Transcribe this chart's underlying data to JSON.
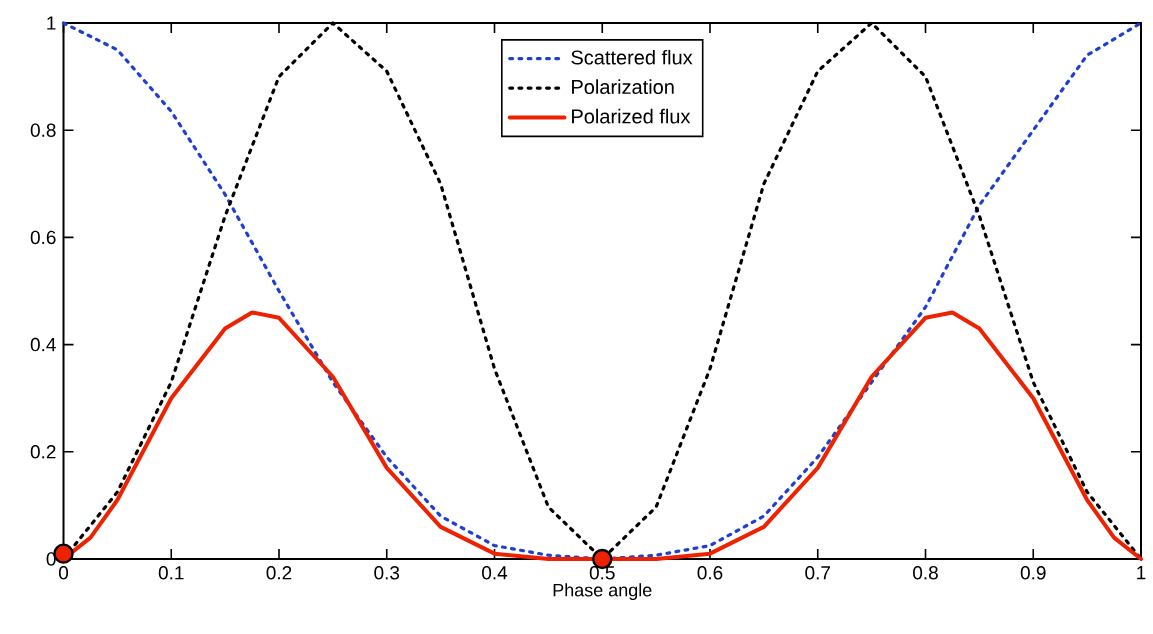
{
  "chart_data": {
    "type": "line",
    "xlabel": "Phase angle",
    "xlim": [
      0,
      1
    ],
    "ylim": [
      0,
      1
    ],
    "xticks": [
      0,
      0.1,
      0.2,
      0.3,
      0.4,
      0.5,
      0.6,
      0.7,
      0.8,
      0.9,
      1
    ],
    "yticks": [
      0,
      0.2,
      0.4,
      0.6,
      0.8,
      1
    ],
    "grid": false,
    "legend": "top",
    "series": [
      {
        "name": "Scattered flux",
        "color": "#1f3fd0",
        "line_style": "dotted",
        "marker": "none",
        "x": [
          0,
          0.05,
          0.1,
          0.15,
          0.2,
          0.25,
          0.3,
          0.35,
          0.4,
          0.45,
          0.5,
          0.55,
          0.6,
          0.65,
          0.7,
          0.75,
          0.8,
          0.85,
          0.9,
          0.95,
          1
        ],
        "values": [
          1,
          0.95,
          0.835,
          0.68,
          0.5,
          0.33,
          0.19,
          0.08,
          0.025,
          0.007,
          0,
          0.007,
          0.025,
          0.08,
          0.19,
          0.33,
          0.47,
          0.66,
          0.8,
          0.94,
          1
        ]
      },
      {
        "name": "Polarization",
        "color": "#000000",
        "line_style": "dotted",
        "marker": "none",
        "x": [
          0,
          0.05,
          0.1,
          0.15,
          0.2,
          0.25,
          0.3,
          0.35,
          0.4,
          0.45,
          0.5,
          0.55,
          0.6,
          0.65,
          0.7,
          0.75,
          0.8,
          0.85,
          0.9,
          0.95,
          1
        ],
        "values": [
          0,
          0.125,
          0.33,
          0.64,
          0.9,
          1,
          0.91,
          0.7,
          0.355,
          0.097,
          0,
          0.097,
          0.355,
          0.7,
          0.91,
          1,
          0.9,
          0.64,
          0.33,
          0.125,
          0
        ]
      },
      {
        "name": "Polarized flux",
        "color": "#ee2200",
        "line_style": "solid",
        "marker": "none",
        "x": [
          0,
          0.025,
          0.05,
          0.1,
          0.15,
          0.175,
          0.2,
          0.25,
          0.3,
          0.35,
          0.4,
          0.45,
          0.5,
          0.55,
          0.6,
          0.65,
          0.7,
          0.75,
          0.8,
          0.825,
          0.85,
          0.9,
          0.95,
          0.975,
          1
        ],
        "values": [
          0,
          0.04,
          0.11,
          0.3,
          0.43,
          0.46,
          0.45,
          0.34,
          0.17,
          0.06,
          0.01,
          0,
          0,
          0,
          0.01,
          0.06,
          0.17,
          0.34,
          0.45,
          0.46,
          0.43,
          0.3,
          0.11,
          0.04,
          0
        ]
      },
      {
        "type": "scatter",
        "color": "#ee2200",
        "marker": "circle",
        "x": [
          0,
          0.5
        ],
        "values": [
          0.01,
          0
        ]
      }
    ]
  }
}
